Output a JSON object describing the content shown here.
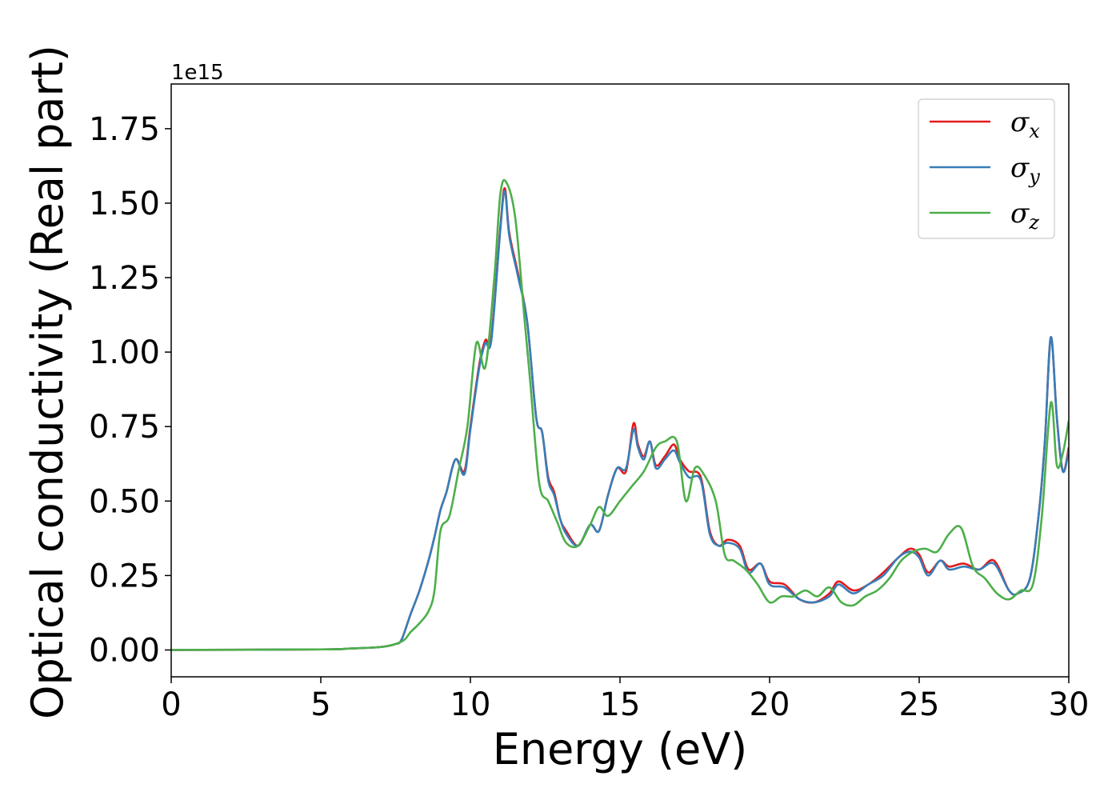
{
  "chart_data": {
    "type": "line",
    "title": "",
    "xlabel": "Energy (eV)",
    "ylabel": "Optical conductivity (Real part)",
    "y_offset_label": "1e15",
    "xlim": [
      0,
      30
    ],
    "ylim": [
      -0.09,
      1.9
    ],
    "x_ticks": [
      0,
      5,
      10,
      15,
      20,
      25,
      30
    ],
    "x_tick_labels": [
      "0",
      "5",
      "10",
      "15",
      "20",
      "25",
      "30"
    ],
    "y_ticks": [
      0,
      0.25,
      0.5,
      0.75,
      1.0,
      1.25,
      1.5,
      1.75
    ],
    "y_tick_labels": [
      "0.00",
      "0.25",
      "0.50",
      "0.75",
      "1.00",
      "1.25",
      "1.50",
      "1.75"
    ],
    "grid": false,
    "legend_position": "top-right",
    "series": [
      {
        "name": "σ",
        "subscript": "x",
        "color": "#e41a1c",
        "x": [
          0,
          5,
          6,
          7,
          7.5,
          7.7,
          8.0,
          8.3,
          8.6,
          8.8,
          9.0,
          9.2,
          9.5,
          9.8,
          10.0,
          10.3,
          10.5,
          10.7,
          11.0,
          11.15,
          11.3,
          11.6,
          11.9,
          12.2,
          12.4,
          12.6,
          12.8,
          13.0,
          13.2,
          13.6,
          14.0,
          14.3,
          14.6,
          14.9,
          15.2,
          15.45,
          15.6,
          15.8,
          16.0,
          16.2,
          16.5,
          16.8,
          17.0,
          17.3,
          17.7,
          18.0,
          18.3,
          18.6,
          19.0,
          19.3,
          19.7,
          20.0,
          20.5,
          21.0,
          21.5,
          22.0,
          22.3,
          22.8,
          23.3,
          23.8,
          24.3,
          24.7,
          25.0,
          25.3,
          25.7,
          26.0,
          26.5,
          27.0,
          27.5,
          28.0,
          28.3,
          28.7,
          29.0,
          29.2,
          29.4,
          29.6,
          29.8,
          30.0
        ],
        "values": [
          0,
          0.002,
          0.005,
          0.01,
          0.02,
          0.035,
          0.12,
          0.2,
          0.3,
          0.38,
          0.47,
          0.53,
          0.64,
          0.6,
          0.75,
          0.96,
          1.04,
          1.05,
          1.42,
          1.55,
          1.4,
          1.26,
          1.1,
          0.78,
          0.73,
          0.58,
          0.53,
          0.44,
          0.4,
          0.35,
          0.42,
          0.4,
          0.52,
          0.61,
          0.6,
          0.76,
          0.69,
          0.65,
          0.7,
          0.62,
          0.65,
          0.69,
          0.64,
          0.6,
          0.58,
          0.4,
          0.35,
          0.37,
          0.35,
          0.27,
          0.29,
          0.23,
          0.22,
          0.17,
          0.16,
          0.19,
          0.23,
          0.2,
          0.22,
          0.26,
          0.31,
          0.34,
          0.32,
          0.26,
          0.3,
          0.28,
          0.29,
          0.27,
          0.3,
          0.2,
          0.19,
          0.24,
          0.46,
          0.7,
          1.05,
          0.78,
          0.6,
          0.68
        ]
      },
      {
        "name": "σ",
        "subscript": "y",
        "color": "#377eb8",
        "x": [
          0,
          5,
          6,
          7,
          7.5,
          7.7,
          8.0,
          8.3,
          8.6,
          8.8,
          9.0,
          9.2,
          9.5,
          9.8,
          10.0,
          10.3,
          10.5,
          10.7,
          11.0,
          11.15,
          11.3,
          11.6,
          11.9,
          12.2,
          12.4,
          12.6,
          12.8,
          13.0,
          13.2,
          13.6,
          14.0,
          14.3,
          14.6,
          14.9,
          15.2,
          15.45,
          15.6,
          15.8,
          16.0,
          16.2,
          16.5,
          16.8,
          17.0,
          17.3,
          17.7,
          18.0,
          18.3,
          18.6,
          19.0,
          19.3,
          19.7,
          20.0,
          20.5,
          21.0,
          21.5,
          22.0,
          22.3,
          22.8,
          23.3,
          23.8,
          24.3,
          24.7,
          25.0,
          25.3,
          25.7,
          26.0,
          26.5,
          27.0,
          27.5,
          28.0,
          28.3,
          28.7,
          29.0,
          29.2,
          29.4,
          29.6,
          29.8,
          30.0
        ],
        "values": [
          0,
          0.002,
          0.005,
          0.01,
          0.02,
          0.035,
          0.12,
          0.2,
          0.3,
          0.38,
          0.47,
          0.53,
          0.64,
          0.59,
          0.74,
          0.95,
          1.03,
          1.04,
          1.41,
          1.54,
          1.39,
          1.25,
          1.1,
          0.78,
          0.73,
          0.57,
          0.52,
          0.44,
          0.39,
          0.35,
          0.42,
          0.4,
          0.52,
          0.61,
          0.61,
          0.74,
          0.68,
          0.64,
          0.7,
          0.61,
          0.64,
          0.67,
          0.63,
          0.58,
          0.57,
          0.39,
          0.35,
          0.36,
          0.34,
          0.26,
          0.29,
          0.22,
          0.21,
          0.17,
          0.16,
          0.18,
          0.22,
          0.19,
          0.22,
          0.25,
          0.31,
          0.33,
          0.31,
          0.25,
          0.3,
          0.27,
          0.28,
          0.27,
          0.29,
          0.2,
          0.19,
          0.24,
          0.46,
          0.7,
          1.05,
          0.78,
          0.6,
          0.67
        ]
      },
      {
        "name": "σ",
        "subscript": "z",
        "color": "#4daf4a",
        "x": [
          0,
          5,
          6,
          7,
          7.5,
          7.8,
          8.0,
          8.3,
          8.6,
          8.8,
          9.0,
          9.3,
          9.6,
          9.9,
          10.2,
          10.5,
          10.8,
          11.0,
          11.2,
          11.5,
          11.8,
          12.0,
          12.3,
          12.6,
          12.9,
          13.2,
          13.6,
          14.0,
          14.3,
          14.6,
          15.0,
          15.4,
          15.8,
          16.2,
          16.5,
          16.9,
          17.2,
          17.5,
          17.8,
          18.2,
          18.5,
          18.8,
          19.2,
          19.6,
          20.0,
          20.4,
          20.8,
          21.2,
          21.6,
          22.0,
          22.4,
          22.8,
          23.2,
          23.6,
          24.0,
          24.4,
          24.8,
          25.2,
          25.6,
          26.0,
          26.4,
          26.8,
          27.2,
          27.6,
          28.0,
          28.4,
          28.8,
          29.1,
          29.4,
          29.6,
          29.8,
          30.0
        ],
        "values": [
          0,
          0.002,
          0.005,
          0.01,
          0.02,
          0.035,
          0.06,
          0.09,
          0.13,
          0.2,
          0.4,
          0.45,
          0.6,
          0.75,
          1.03,
          0.95,
          1.25,
          1.53,
          1.57,
          1.45,
          1.12,
          0.9,
          0.56,
          0.5,
          0.43,
          0.36,
          0.35,
          0.42,
          0.48,
          0.45,
          0.5,
          0.55,
          0.6,
          0.68,
          0.7,
          0.7,
          0.5,
          0.61,
          0.59,
          0.5,
          0.32,
          0.3,
          0.27,
          0.22,
          0.16,
          0.18,
          0.18,
          0.2,
          0.18,
          0.21,
          0.16,
          0.15,
          0.18,
          0.2,
          0.24,
          0.3,
          0.33,
          0.34,
          0.33,
          0.39,
          0.41,
          0.28,
          0.24,
          0.19,
          0.17,
          0.2,
          0.22,
          0.45,
          0.83,
          0.62,
          0.66,
          0.77
        ]
      }
    ]
  }
}
